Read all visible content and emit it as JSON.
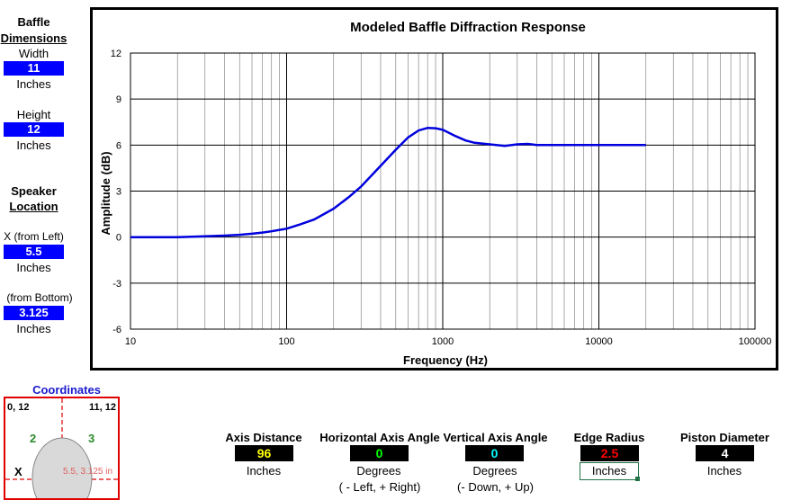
{
  "sidebar": {
    "baffle_title": "Baffle",
    "baffle_subtitle": "Dimensions",
    "width_label": "Width",
    "width_value": "11",
    "width_unit": "Inches",
    "height_label": "Height",
    "height_value": "12",
    "height_unit": "Inches",
    "speaker_title": "Speaker",
    "speaker_subtitle": "Location",
    "x_label": "X (from Left)",
    "x_value": "5.5",
    "x_unit": "Inches",
    "y_label": "(from Bottom)",
    "y_value": "3.125",
    "y_unit": "Inches"
  },
  "coordinates": {
    "title": "Coordinates",
    "top_left": "0, 12",
    "top_right": "11, 12",
    "quadrant_2": "2",
    "quadrant_3": "3",
    "x_marker": "X",
    "speaker_point": "5.5, 3.125 in"
  },
  "controls": {
    "axis_distance_label": "Axis Distance",
    "axis_distance_value": "96",
    "axis_distance_unit": "Inches",
    "h_angle_label": "Horizontal Axis Angle",
    "h_angle_value": "0",
    "h_angle_unit": "Degrees",
    "h_angle_note": "( - Left, + Right)",
    "v_angle_label": "Vertical Axis Angle",
    "v_angle_value": "0",
    "v_angle_unit": "Degrees",
    "v_angle_note": "(- Down, + Up)",
    "edge_radius_label": "Edge Radius",
    "edge_radius_value": "2.5",
    "edge_radius_unit": "Inches",
    "piston_label": "Piston Diameter",
    "piston_value": "4",
    "piston_unit": "Inches"
  },
  "colors": {
    "curve": "#0000dd",
    "axis_distance_value": "#ffff00",
    "h_angle_value": "#00ff00",
    "v_angle_value": "#00ffff",
    "edge_radius_value": "#ff0000",
    "piston_value": "#ffffff"
  },
  "chart_data": {
    "type": "line",
    "title": "Modeled Baffle Diffraction Response",
    "xlabel": "Frequency (Hz)",
    "ylabel": "Amplitude (dB)",
    "x_scale": "log",
    "xlim": [
      10,
      100000
    ],
    "ylim": [
      -6,
      12
    ],
    "x_ticks": [
      "10",
      "100",
      "1000",
      "10000",
      "100000"
    ],
    "y_ticks": [
      "-6",
      "-3",
      "0",
      "3",
      "6",
      "9",
      "12"
    ],
    "grid": true,
    "series": [
      {
        "x": [
          10,
          20,
          30,
          40,
          50,
          60,
          70,
          80,
          100,
          120,
          150,
          200,
          250,
          300,
          400,
          500,
          600,
          700,
          800,
          900,
          1000,
          1200,
          1400,
          1600,
          2000,
          2500,
          3000,
          3500,
          4000,
          5000,
          7000,
          10000,
          15000,
          20000
        ],
        "y": [
          0,
          0,
          0.05,
          0.1,
          0.15,
          0.22,
          0.3,
          0.38,
          0.55,
          0.8,
          1.15,
          1.85,
          2.6,
          3.3,
          4.65,
          5.7,
          6.5,
          6.95,
          7.12,
          7.1,
          7.0,
          6.6,
          6.3,
          6.15,
          6.05,
          5.95,
          6.05,
          6.08,
          6.0,
          6.0,
          6.0,
          6.0,
          6.0,
          6.0
        ]
      }
    ]
  }
}
